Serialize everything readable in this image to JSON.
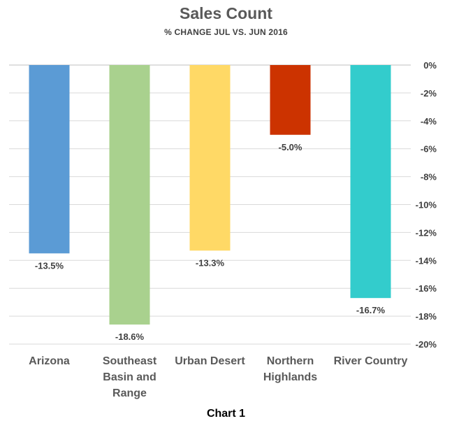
{
  "chart_data": {
    "type": "bar",
    "title": "Sales Count",
    "subtitle": "% CHANGE JUL VS. JUN 2016",
    "categories": [
      "Arizona",
      "Southeast Basin and Range",
      "Urban Desert",
      "Northern Highlands",
      "River Country"
    ],
    "category_lines": [
      [
        "Arizona"
      ],
      [
        "Southeast",
        "Basin and",
        "Range"
      ],
      [
        "Urban Desert"
      ],
      [
        "Northern",
        "Highlands"
      ],
      [
        "River Country"
      ]
    ],
    "values": [
      -13.5,
      -18.6,
      -13.3,
      -5.0,
      -16.7
    ],
    "data_labels": [
      "-13.5%",
      "-18.6%",
      "-13.3%",
      "-5.0%",
      "-16.7%"
    ],
    "colors": [
      "#5b9bd5",
      "#a9d18e",
      "#ffd966",
      "#cc3300",
      "#33cccc"
    ],
    "ylim": [
      -20,
      0
    ],
    "yticks": [
      0,
      -2,
      -4,
      -6,
      -8,
      -10,
      -12,
      -14,
      -16,
      -18,
      -20
    ],
    "ytick_labels": [
      "0%",
      "-2%",
      "-4%",
      "-6%",
      "-8%",
      "-10%",
      "-12%",
      "-14%",
      "-16%",
      "-18%",
      "-20%"
    ],
    "grid": true,
    "y_axis_side": "right",
    "legend": "none"
  },
  "caption": "Chart 1"
}
